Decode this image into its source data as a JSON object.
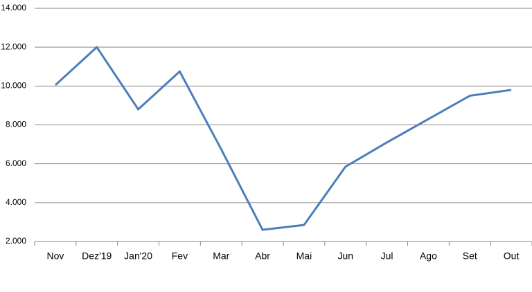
{
  "chart_data": {
    "type": "line",
    "categories": [
      "Nov",
      "Dez'19",
      "Jan'20",
      "Fev",
      "Mar",
      "Abr",
      "Mai",
      "Jun",
      "Jul",
      "Ago",
      "Set",
      "Out"
    ],
    "series": [
      {
        "color": "#4a7ebb",
        "values": [
          10050,
          12000,
          8800,
          10750,
          6750,
          2600,
          2850,
          5850,
          7100,
          8300,
          9500,
          9800
        ]
      }
    ],
    "ylim": [
      2000,
      14000
    ],
    "yticks": [
      {
        "value": 2000,
        "label": "2.000"
      },
      {
        "value": 4000,
        "label": "4.000"
      },
      {
        "value": 6000,
        "label": "6.000"
      },
      {
        "value": 8000,
        "label": "8.000"
      },
      {
        "value": 10000,
        "label": "10.000"
      },
      {
        "value": 12000,
        "label": "12.000"
      },
      {
        "value": 14000,
        "label": "14.000"
      }
    ],
    "grid": true
  }
}
